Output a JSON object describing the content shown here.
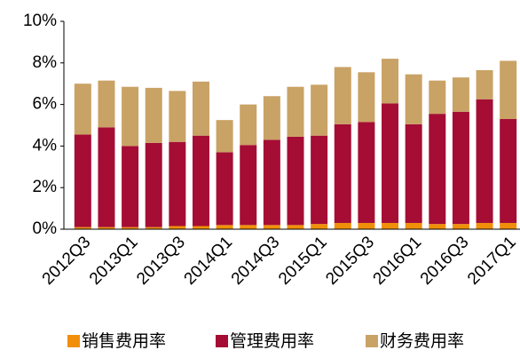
{
  "chart_data": {
    "type": "stacked_bar",
    "categories": [
      "2012Q3",
      null,
      "2013Q1",
      null,
      "2013Q3",
      null,
      "2014Q1",
      null,
      "2014Q3",
      null,
      "2015Q1",
      null,
      "2015Q3",
      null,
      "2016Q1",
      null,
      "2016Q3",
      null,
      "2017Q1"
    ],
    "series": [
      {
        "name": "销售费用率",
        "color": "#f0900a",
        "values": [
          0.1,
          0.1,
          0.1,
          0.1,
          0.15,
          0.15,
          0.2,
          0.2,
          0.2,
          0.2,
          0.25,
          0.3,
          0.3,
          0.3,
          0.3,
          0.25,
          0.25,
          0.3,
          0.3
        ]
      },
      {
        "name": "管理费用率",
        "color": "#a50d34",
        "values": [
          4.45,
          4.8,
          3.9,
          4.05,
          4.05,
          4.35,
          3.5,
          3.85,
          4.1,
          4.25,
          4.25,
          4.75,
          4.85,
          5.75,
          4.75,
          5.3,
          5.4,
          5.95,
          5.0
        ]
      },
      {
        "name": "财务费用率",
        "color": "#c9a265",
        "values": [
          2.45,
          2.25,
          2.85,
          2.65,
          2.45,
          2.6,
          1.55,
          1.95,
          2.1,
          2.4,
          2.45,
          2.75,
          2.4,
          2.15,
          2.4,
          1.6,
          1.65,
          1.4,
          2.8
        ]
      }
    ],
    "ylim": [
      0,
      10
    ],
    "yticks": [
      {
        "value": 0,
        "label": "0%"
      },
      {
        "value": 2,
        "label": "2%"
      },
      {
        "value": 4,
        "label": "4%"
      },
      {
        "value": 6,
        "label": "6%"
      },
      {
        "value": 8,
        "label": "8%"
      },
      {
        "value": 10,
        "label": "10%"
      }
    ],
    "legend": "bottom"
  }
}
